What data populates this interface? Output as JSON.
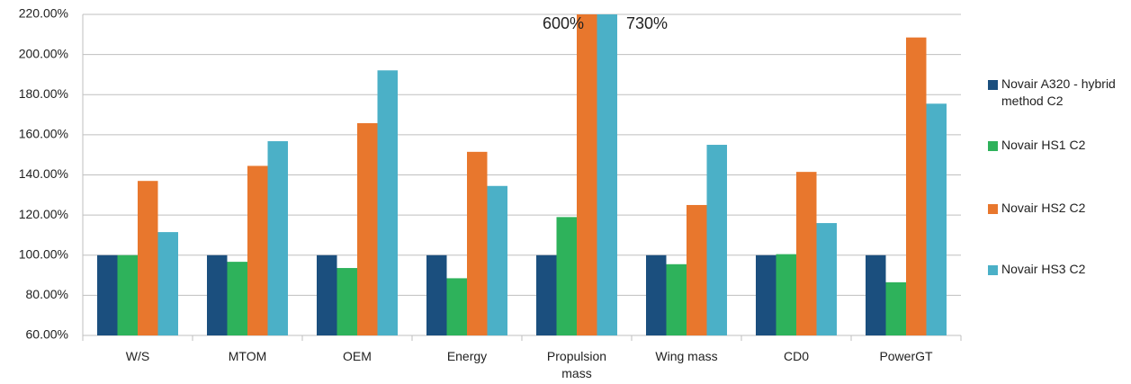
{
  "chart_data": {
    "type": "bar",
    "categories": [
      "W/S",
      "MTOM",
      "OEM",
      "Energy",
      "Propulsion mass",
      "Wing mass",
      "CD0",
      "PowerGT"
    ],
    "series": [
      {
        "name": "Novair A320 - hybrid method C2",
        "color": "#1b4f7e",
        "values": [
          100,
          100,
          100,
          100,
          100,
          100,
          100,
          100
        ]
      },
      {
        "name": "Novair HS1 C2",
        "color": "#2eb25b",
        "values": [
          100,
          96.7,
          93.6,
          88.5,
          119,
          95.5,
          100.5,
          86.5
        ]
      },
      {
        "name": "Novair HS2 C2",
        "color": "#e8772d",
        "values": [
          137,
          144.5,
          165.8,
          151.5,
          600,
          125,
          141.5,
          208.5
        ],
        "value_labels": [
          null,
          null,
          null,
          null,
          "600%",
          null,
          null,
          null
        ]
      },
      {
        "name": "Novair HS3 C2",
        "color": "#4bb0c7",
        "values": [
          111.5,
          156.8,
          192.1,
          134.5,
          730,
          155,
          116,
          175.5
        ],
        "value_labels": [
          null,
          null,
          null,
          null,
          "730%",
          null,
          null,
          null
        ]
      }
    ],
    "ylim": [
      60,
      220
    ],
    "yticks": [
      {
        "value": 60,
        "label": "60.00%"
      },
      {
        "value": 80,
        "label": "80.00%"
      },
      {
        "value": 100,
        "label": "100.00%"
      },
      {
        "value": 120,
        "label": "120.00%"
      },
      {
        "value": 140,
        "label": "140.00%"
      },
      {
        "value": 160,
        "label": "160.00%"
      },
      {
        "value": 180,
        "label": "180.00%"
      },
      {
        "value": 200,
        "label": "200.00%"
      },
      {
        "value": 220,
        "label": "220.00%"
      }
    ],
    "grid": true,
    "legend": "right"
  }
}
